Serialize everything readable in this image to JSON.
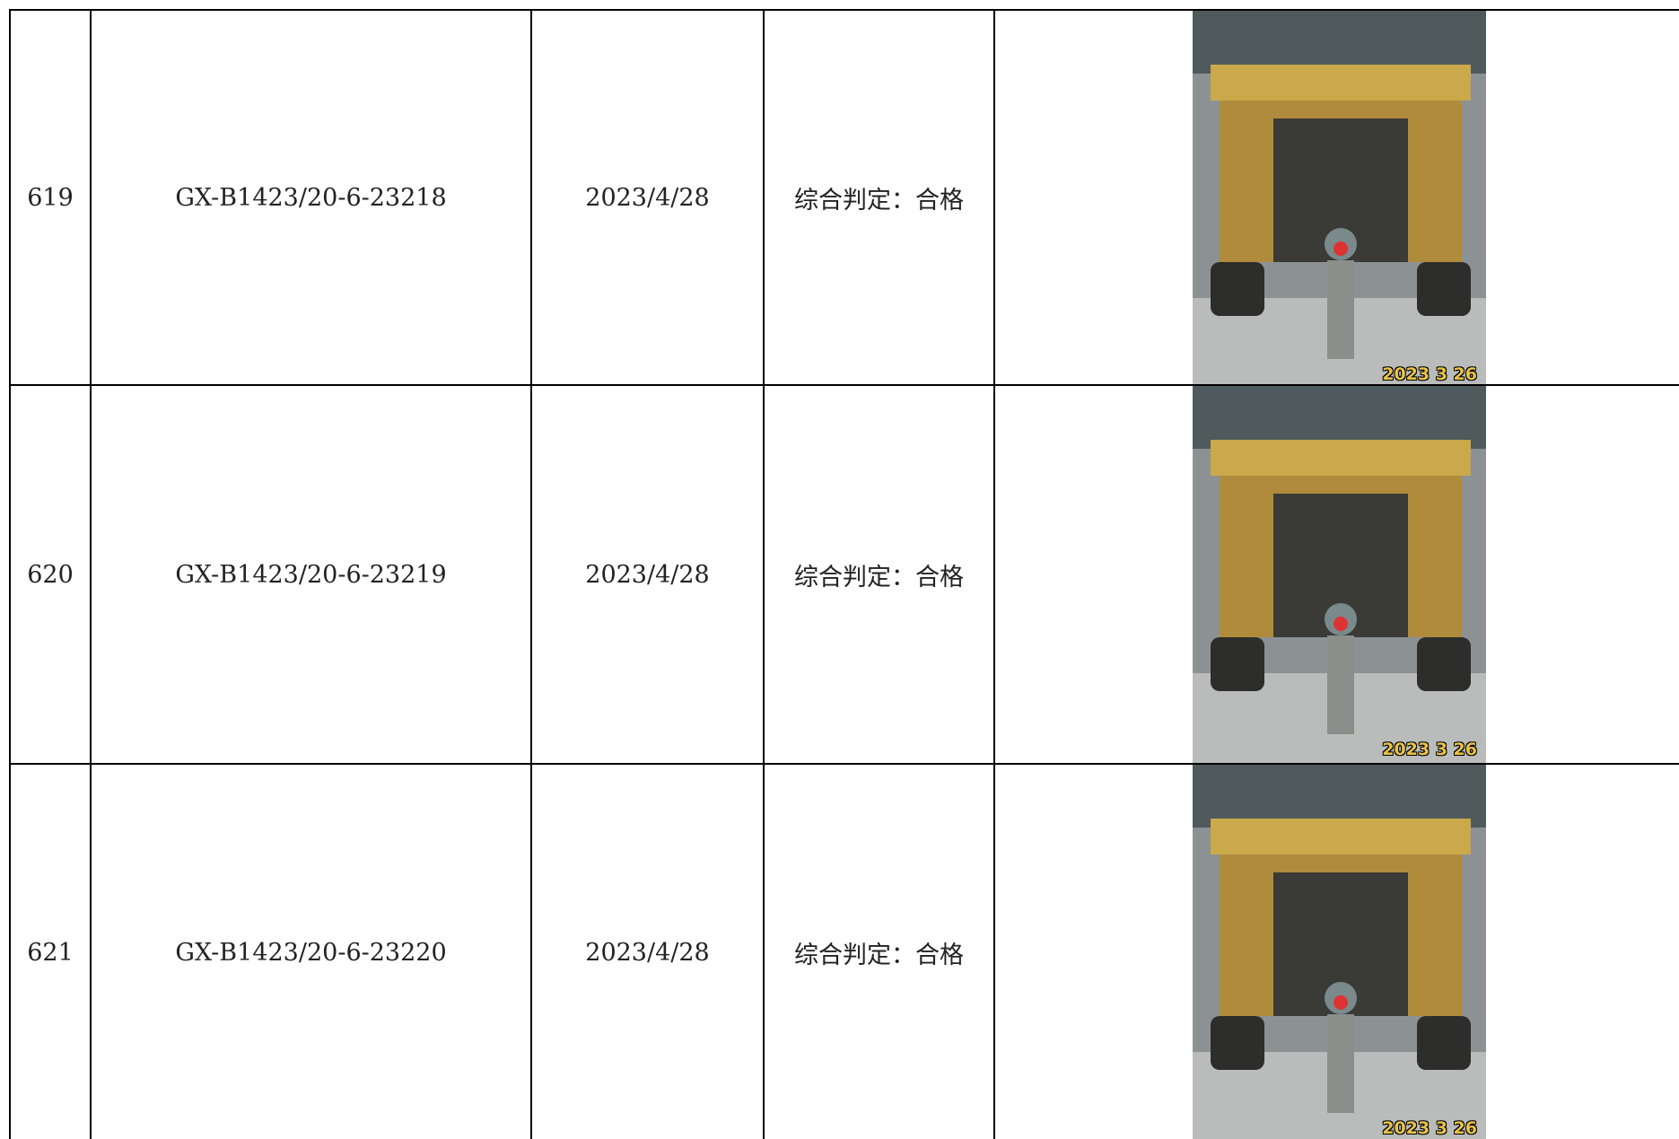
{
  "table": {
    "rows": [
      [
        "619",
        "GX-B1423/20-6-23218",
        "2023/4/28",
        "综合判定：合格",
        "2023 3 26"
      ],
      [
        "620",
        "GX-B1423/20-6-23219",
        "2023/4/28",
        "综合判定：合格",
        "2023 3 26"
      ],
      [
        "621",
        "GX-B1423/20-6-23220",
        "2023/4/28",
        "综合判定：合格",
        "2023 3 26"
      ]
    ]
  }
}
